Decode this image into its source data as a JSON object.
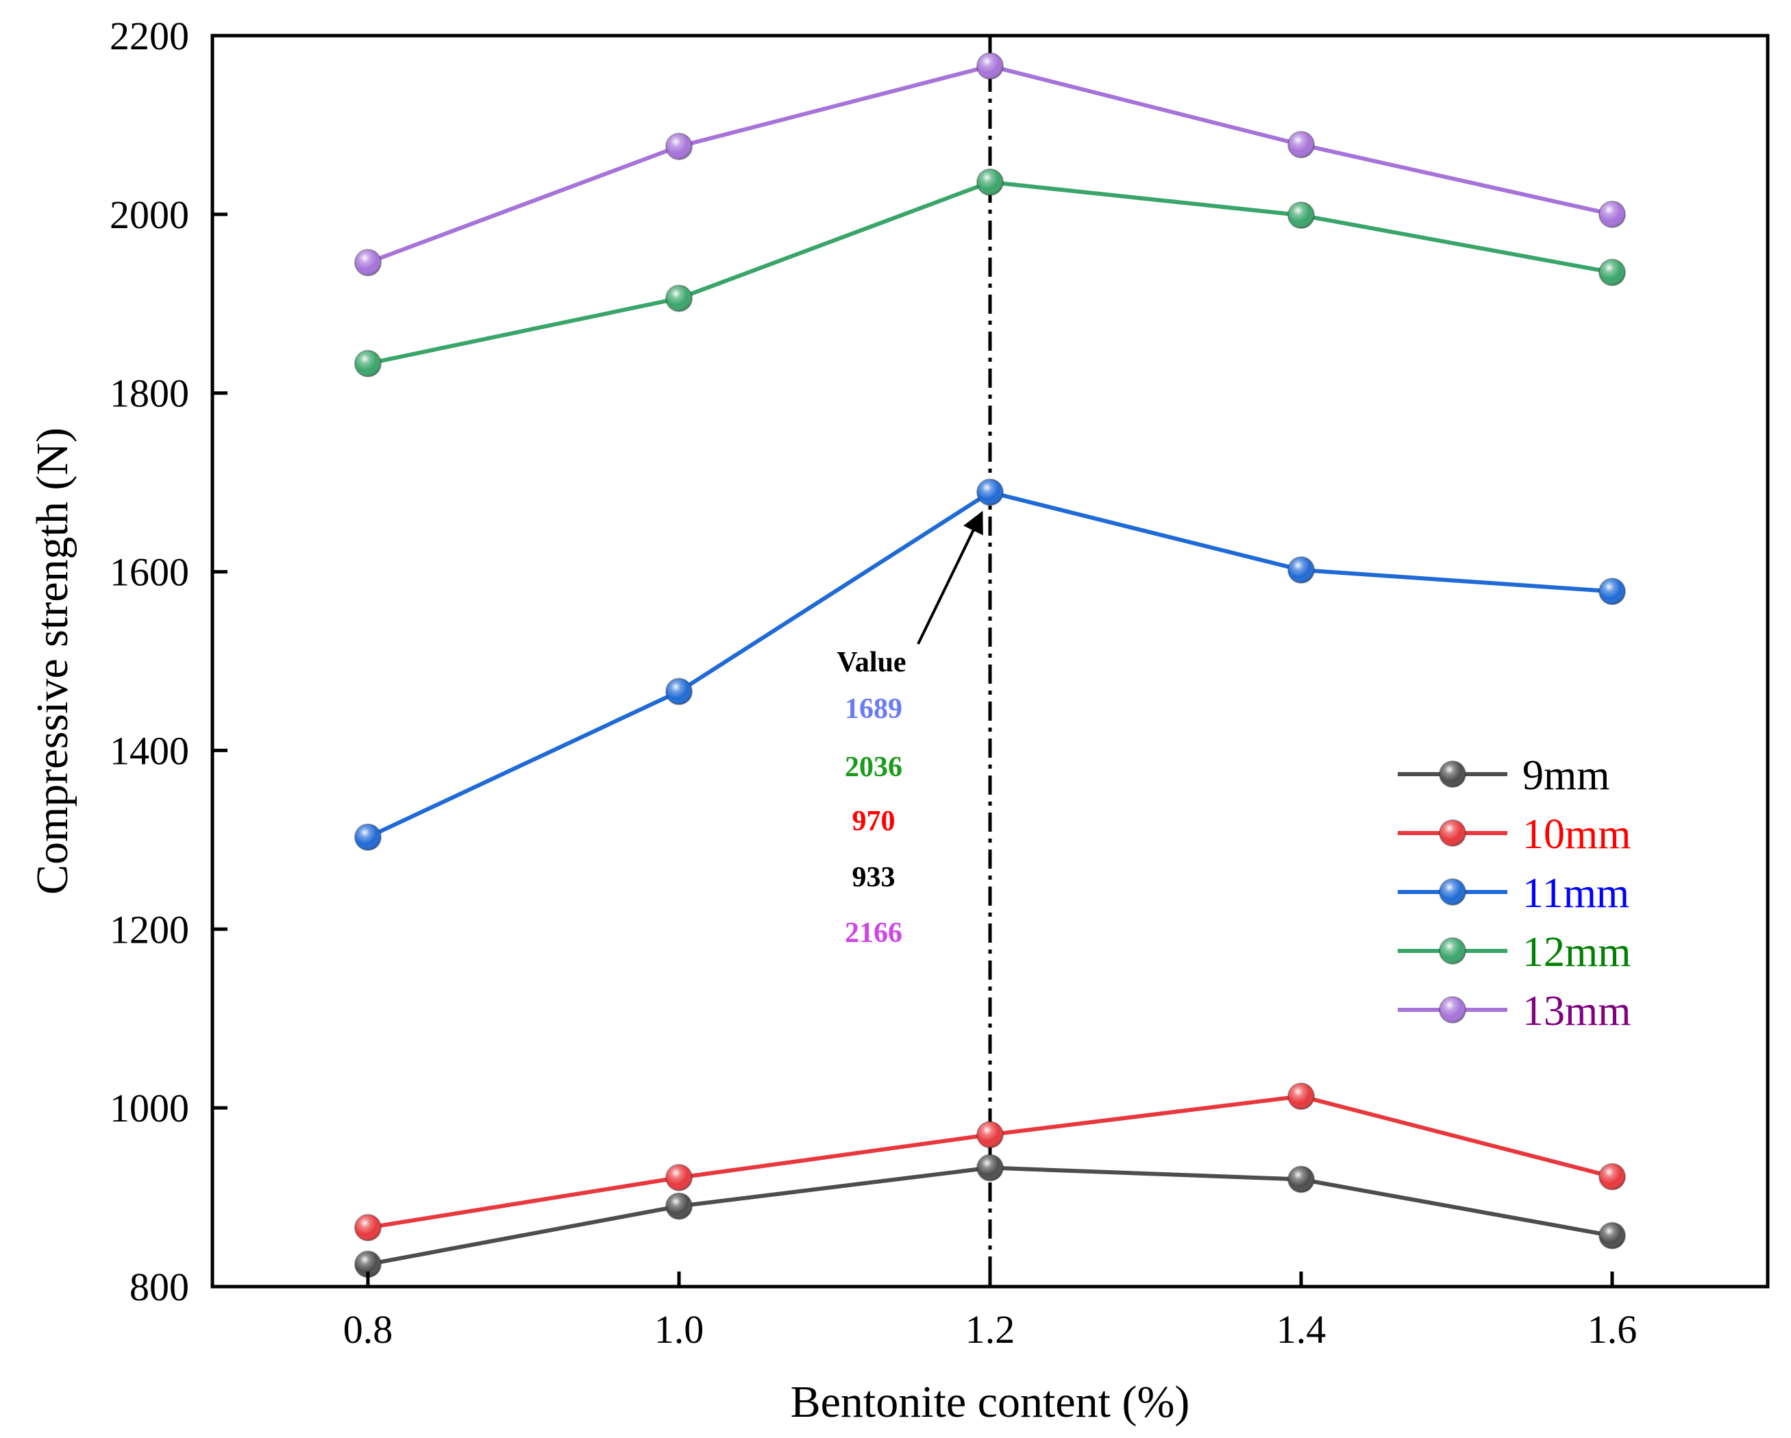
{
  "chart_data": {
    "type": "line",
    "xlabel": "Bentonite content (%)",
    "ylabel": "Compressive strength (N)",
    "x": [
      0.8,
      1.0,
      1.2,
      1.4,
      1.6
    ],
    "x_tick_labels": [
      "0.8",
      "1.0",
      "1.2",
      "1.4",
      "1.6"
    ],
    "y_tick_labels": [
      "800",
      "1000",
      "1200",
      "1400",
      "1600",
      "1800",
      "2000",
      "2200"
    ],
    "xlim": [
      0.7,
      1.7
    ],
    "ylim": [
      800,
      2200
    ],
    "grid": false,
    "legend_position": "right",
    "series": [
      {
        "name": "9mm",
        "values": [
          825,
          890,
          933,
          920,
          857
        ],
        "color": "#4d4d4d",
        "label_color": "#000000"
      },
      {
        "name": "10mm",
        "values": [
          866,
          922,
          970,
          1013,
          923
        ],
        "color": "#e8383d",
        "label_color": "#ff0000"
      },
      {
        "name": "11mm",
        "values": [
          1303,
          1466,
          1689,
          1602,
          1578
        ],
        "color": "#1f6ad6",
        "label_color": "#0000ff"
      },
      {
        "name": "12mm",
        "values": [
          1833,
          1906,
          2036,
          1999,
          1935
        ],
        "color": "#3aa56a",
        "label_color": "#008000"
      },
      {
        "name": "13mm",
        "values": [
          1946,
          2076,
          2166,
          2078,
          2000
        ],
        "color": "#a673d9",
        "label_color": "#800080"
      }
    ],
    "reference_line": {
      "x": 1.2,
      "style": "dash-dot",
      "color": "#000000"
    },
    "annotation": {
      "title": "Value",
      "values": [
        {
          "text": "1689",
          "color": "#6a7bf5"
        },
        {
          "text": "2036",
          "color": "#1a9c1a"
        },
        {
          "text": "970",
          "color": "#ff0000"
        },
        {
          "text": "933",
          "color": "#000000"
        },
        {
          "text": "2166",
          "color": "#d045e8"
        }
      ],
      "arrow_target": {
        "x": 1.2,
        "y": 1689
      }
    }
  }
}
